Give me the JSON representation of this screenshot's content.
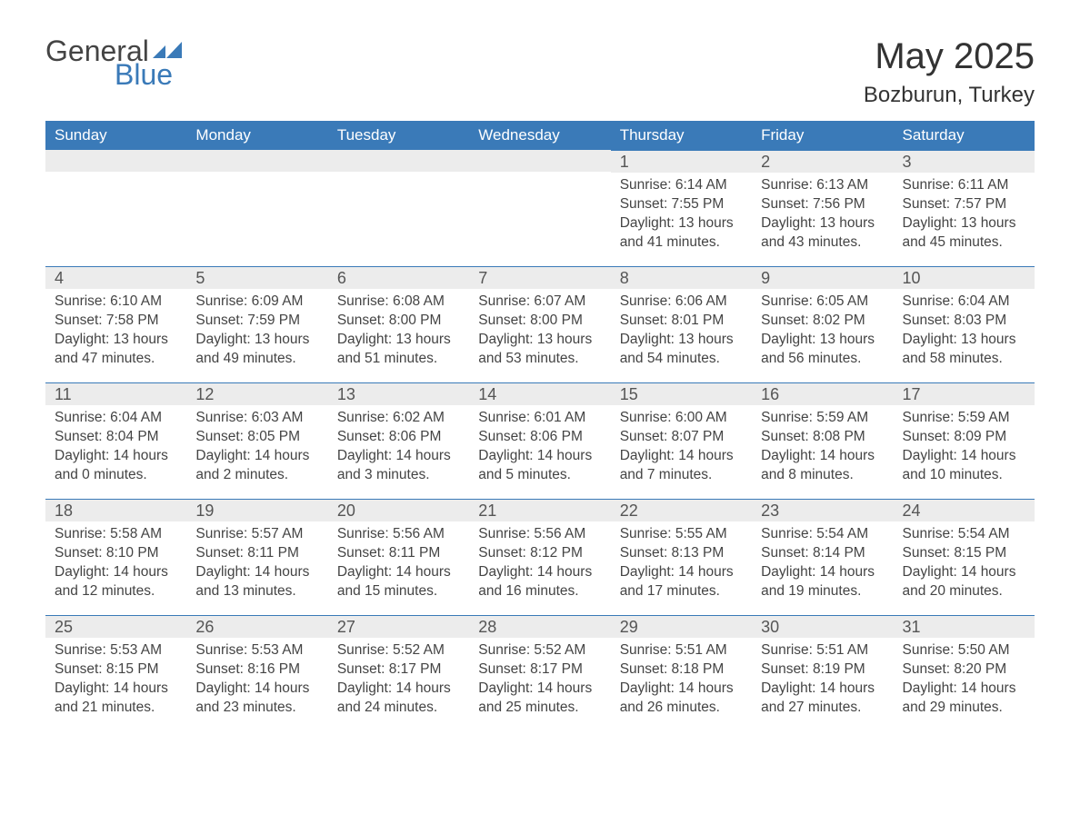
{
  "logo": {
    "general": "General",
    "blue": "Blue"
  },
  "header": {
    "month_title": "May 2025",
    "location": "Bozburun, Turkey"
  },
  "colors": {
    "header_bg": "#3a7ab8",
    "header_text": "#ffffff",
    "daynum_bg": "#ececec",
    "border": "#3a7ab8",
    "text": "#444444"
  },
  "weekdays": [
    "Sunday",
    "Monday",
    "Tuesday",
    "Wednesday",
    "Thursday",
    "Friday",
    "Saturday"
  ],
  "first_weekday_index": 4,
  "days": [
    {
      "n": 1,
      "sunrise": "6:14 AM",
      "sunset": "7:55 PM",
      "dl_h": 13,
      "dl_m": 41
    },
    {
      "n": 2,
      "sunrise": "6:13 AM",
      "sunset": "7:56 PM",
      "dl_h": 13,
      "dl_m": 43
    },
    {
      "n": 3,
      "sunrise": "6:11 AM",
      "sunset": "7:57 PM",
      "dl_h": 13,
      "dl_m": 45
    },
    {
      "n": 4,
      "sunrise": "6:10 AM",
      "sunset": "7:58 PM",
      "dl_h": 13,
      "dl_m": 47
    },
    {
      "n": 5,
      "sunrise": "6:09 AM",
      "sunset": "7:59 PM",
      "dl_h": 13,
      "dl_m": 49
    },
    {
      "n": 6,
      "sunrise": "6:08 AM",
      "sunset": "8:00 PM",
      "dl_h": 13,
      "dl_m": 51
    },
    {
      "n": 7,
      "sunrise": "6:07 AM",
      "sunset": "8:00 PM",
      "dl_h": 13,
      "dl_m": 53
    },
    {
      "n": 8,
      "sunrise": "6:06 AM",
      "sunset": "8:01 PM",
      "dl_h": 13,
      "dl_m": 54
    },
    {
      "n": 9,
      "sunrise": "6:05 AM",
      "sunset": "8:02 PM",
      "dl_h": 13,
      "dl_m": 56
    },
    {
      "n": 10,
      "sunrise": "6:04 AM",
      "sunset": "8:03 PM",
      "dl_h": 13,
      "dl_m": 58
    },
    {
      "n": 11,
      "sunrise": "6:04 AM",
      "sunset": "8:04 PM",
      "dl_h": 14,
      "dl_m": 0
    },
    {
      "n": 12,
      "sunrise": "6:03 AM",
      "sunset": "8:05 PM",
      "dl_h": 14,
      "dl_m": 2
    },
    {
      "n": 13,
      "sunrise": "6:02 AM",
      "sunset": "8:06 PM",
      "dl_h": 14,
      "dl_m": 3
    },
    {
      "n": 14,
      "sunrise": "6:01 AM",
      "sunset": "8:06 PM",
      "dl_h": 14,
      "dl_m": 5
    },
    {
      "n": 15,
      "sunrise": "6:00 AM",
      "sunset": "8:07 PM",
      "dl_h": 14,
      "dl_m": 7
    },
    {
      "n": 16,
      "sunrise": "5:59 AM",
      "sunset": "8:08 PM",
      "dl_h": 14,
      "dl_m": 8
    },
    {
      "n": 17,
      "sunrise": "5:59 AM",
      "sunset": "8:09 PM",
      "dl_h": 14,
      "dl_m": 10
    },
    {
      "n": 18,
      "sunrise": "5:58 AM",
      "sunset": "8:10 PM",
      "dl_h": 14,
      "dl_m": 12
    },
    {
      "n": 19,
      "sunrise": "5:57 AM",
      "sunset": "8:11 PM",
      "dl_h": 14,
      "dl_m": 13
    },
    {
      "n": 20,
      "sunrise": "5:56 AM",
      "sunset": "8:11 PM",
      "dl_h": 14,
      "dl_m": 15
    },
    {
      "n": 21,
      "sunrise": "5:56 AM",
      "sunset": "8:12 PM",
      "dl_h": 14,
      "dl_m": 16
    },
    {
      "n": 22,
      "sunrise": "5:55 AM",
      "sunset": "8:13 PM",
      "dl_h": 14,
      "dl_m": 17
    },
    {
      "n": 23,
      "sunrise": "5:54 AM",
      "sunset": "8:14 PM",
      "dl_h": 14,
      "dl_m": 19
    },
    {
      "n": 24,
      "sunrise": "5:54 AM",
      "sunset": "8:15 PM",
      "dl_h": 14,
      "dl_m": 20
    },
    {
      "n": 25,
      "sunrise": "5:53 AM",
      "sunset": "8:15 PM",
      "dl_h": 14,
      "dl_m": 21
    },
    {
      "n": 26,
      "sunrise": "5:53 AM",
      "sunset": "8:16 PM",
      "dl_h": 14,
      "dl_m": 23
    },
    {
      "n": 27,
      "sunrise": "5:52 AM",
      "sunset": "8:17 PM",
      "dl_h": 14,
      "dl_m": 24
    },
    {
      "n": 28,
      "sunrise": "5:52 AM",
      "sunset": "8:17 PM",
      "dl_h": 14,
      "dl_m": 25
    },
    {
      "n": 29,
      "sunrise": "5:51 AM",
      "sunset": "8:18 PM",
      "dl_h": 14,
      "dl_m": 26
    },
    {
      "n": 30,
      "sunrise": "5:51 AM",
      "sunset": "8:19 PM",
      "dl_h": 14,
      "dl_m": 27
    },
    {
      "n": 31,
      "sunrise": "5:50 AM",
      "sunset": "8:20 PM",
      "dl_h": 14,
      "dl_m": 29
    }
  ],
  "labels": {
    "sunrise": "Sunrise:",
    "sunset": "Sunset:",
    "daylight_prefix": "Daylight:",
    "hours_word": "hours",
    "and_word": "and",
    "minutes_word": "minutes."
  }
}
